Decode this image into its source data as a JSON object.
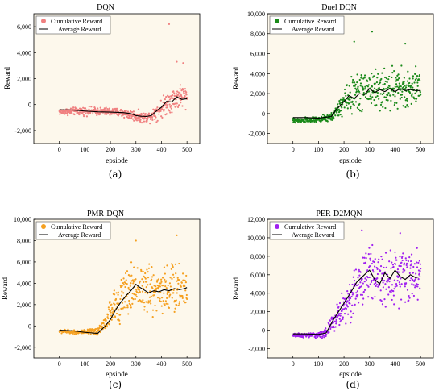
{
  "figure": {
    "panels": [
      {
        "caption": "(a)",
        "colors": {
          "scatter": "#f08080",
          "line": "#000000",
          "background": "#fdf8ec"
        }
      },
      {
        "caption": "(b)",
        "colors": {
          "scatter": "#1a8a1a",
          "line": "#000000",
          "background": "#fdf8ec"
        }
      },
      {
        "caption": "(c)",
        "colors": {
          "scatter": "#f5a020",
          "line": "#000000",
          "background": "#fdf8ec"
        }
      },
      {
        "caption": "(d)",
        "colors": {
          "scatter": "#a020f0",
          "line": "#000000",
          "background": "#fdf8ec"
        }
      }
    ]
  },
  "chart_data": [
    {
      "type": "scatter",
      "title": "DQN",
      "xlabel": "epsiode",
      "ylabel": "Reward",
      "xlim": [
        -100,
        550
      ],
      "ylim": [
        -3000,
        7000
      ],
      "xticks": [
        0,
        100,
        200,
        300,
        400,
        500
      ],
      "yticks": [
        -2000,
        0,
        2000,
        4000,
        6000
      ],
      "ytick_labels": [
        "-2,000",
        "0",
        "2,000",
        "4,000",
        "6,000"
      ],
      "legend": {
        "placement": "top-left"
      },
      "grid": false,
      "series": [
        {
          "name": "Cumulative Reward",
          "kind": "scatter",
          "profile": {
            "x": [
              0,
              100,
              200,
              250,
              300,
              330,
              350,
              380,
              400,
              430,
              450,
              480,
              500
            ],
            "center": [
              -550,
              -500,
              -550,
              -650,
              -900,
              -1000,
              -950,
              -550,
              -300,
              300,
              450,
              700,
              500
            ],
            "spread": [
              350,
              450,
              450,
              500,
              600,
              550,
              600,
              900,
              1100,
              1300,
              1300,
              1400,
              1400
            ]
          },
          "points_per_episode": 1,
          "outliers": [
            [
              430,
              6200
            ],
            [
              460,
              3300
            ],
            [
              485,
              3200
            ]
          ]
        },
        {
          "name": "Average Reward",
          "kind": "line",
          "x": [
            0,
            50,
            100,
            150,
            200,
            250,
            280,
            300,
            320,
            340,
            360,
            380,
            400,
            420,
            440,
            460,
            480,
            500
          ],
          "y": [
            -400,
            -420,
            -500,
            -560,
            -580,
            -620,
            -700,
            -850,
            -900,
            -920,
            -850,
            -500,
            -200,
            250,
            200,
            600,
            400,
            450
          ]
        }
      ]
    },
    {
      "type": "scatter",
      "title": "Duel DQN",
      "xlabel": "epsiode",
      "ylabel": "Reward",
      "xlim": [
        -100,
        550
      ],
      "ylim": [
        -3000,
        10000
      ],
      "xticks": [
        0,
        100,
        200,
        300,
        400,
        500
      ],
      "yticks": [
        -2000,
        0,
        2000,
        4000,
        6000,
        8000,
        10000
      ],
      "ytick_labels": [
        "-2,000",
        "0",
        "2,000",
        "4,000",
        "6,000",
        "8,000",
        "10,000"
      ],
      "legend": {
        "placement": "top-left"
      },
      "grid": false,
      "series": [
        {
          "name": "Cumulative Reward",
          "kind": "scatter",
          "profile": {
            "x": [
              0,
              100,
              150,
              180,
              200,
              230,
              260,
              300,
              350,
              400,
              450,
              500
            ],
            "center": [
              -700,
              -600,
              -400,
              400,
              1300,
              1800,
              2200,
              2500,
              2400,
              2500,
              2300,
              2400
            ],
            "spread": [
              400,
              400,
              600,
              1200,
              2000,
              2500,
              2800,
              3000,
              3000,
              3000,
              2900,
              2900
            ]
          },
          "points_per_episode": 1,
          "outliers": [
            [
              310,
              8200
            ],
            [
              240,
              7200
            ],
            [
              440,
              7000
            ]
          ]
        },
        {
          "name": "Average Reward",
          "kind": "line",
          "x": [
            0,
            50,
            100,
            150,
            170,
            200,
            220,
            240,
            260,
            280,
            300,
            320,
            340,
            360,
            380,
            400,
            420,
            440,
            460,
            480,
            500
          ],
          "y": [
            -400,
            -400,
            -450,
            -300,
            400,
            1200,
            1800,
            1500,
            2000,
            1900,
            2500,
            2100,
            2400,
            2200,
            2500,
            2200,
            2500,
            2300,
            2400,
            2300,
            2300
          ]
        }
      ]
    },
    {
      "type": "scatter",
      "title": "PMR-DQN",
      "xlabel": "epsiode",
      "ylabel": "Reward",
      "xlim": [
        -100,
        550
      ],
      "ylim": [
        -3000,
        10000
      ],
      "xticks": [
        0,
        100,
        200,
        300,
        400,
        500
      ],
      "yticks": [
        -2000,
        0,
        2000,
        4000,
        6000,
        8000,
        10000
      ],
      "ytick_labels": [
        "-2,000",
        "0",
        "2,000",
        "4,000",
        "6,000",
        "8,000",
        "10,000"
      ],
      "legend": {
        "placement": "top-left"
      },
      "grid": false,
      "series": [
        {
          "name": "Cumulative Reward",
          "kind": "scatter",
          "profile": {
            "x": [
              0,
              100,
              150,
              180,
              200,
              250,
              300,
              350,
              400,
              450,
              500
            ],
            "center": [
              -500,
              -600,
              -500,
              300,
              1300,
              2800,
              3800,
              3300,
              3500,
              3500,
              3600
            ],
            "spread": [
              250,
              300,
              500,
              1200,
              2000,
              3000,
              3600,
              3600,
              3500,
              3500,
              3500
            ]
          },
          "points_per_episode": 1,
          "outliers": [
            [
              460,
              8500
            ],
            [
              300,
              8000
            ]
          ]
        },
        {
          "name": "Average Reward",
          "kind": "line",
          "x": [
            0,
            50,
            100,
            150,
            180,
            200,
            220,
            240,
            260,
            280,
            300,
            310,
            330,
            350,
            370,
            390,
            410,
            430,
            450,
            470,
            490,
            500
          ],
          "y": [
            -400,
            -450,
            -600,
            -700,
            0,
            600,
            1500,
            2200,
            2800,
            3300,
            3900,
            3700,
            3400,
            3100,
            3300,
            3200,
            3400,
            3300,
            3500,
            3400,
            3500,
            3600
          ]
        }
      ]
    },
    {
      "type": "scatter",
      "title": "PER-D2MQN",
      "xlabel": "epsiode",
      "ylabel": "Reward",
      "xlim": [
        -100,
        550
      ],
      "ylim": [
        -3000,
        12000
      ],
      "xticks": [
        0,
        100,
        200,
        300,
        400,
        500
      ],
      "yticks": [
        -2000,
        0,
        2000,
        4000,
        6000,
        8000,
        10000,
        12000
      ],
      "ytick_labels": [
        "-2,000",
        "0",
        "2,000",
        "4,000",
        "6,000",
        "8,000",
        "10,000",
        "12,000"
      ],
      "legend": {
        "placement": "top-left"
      },
      "grid": false,
      "series": [
        {
          "name": "Cumulative Reward",
          "kind": "scatter",
          "profile": {
            "x": [
              0,
              100,
              130,
              160,
              200,
              250,
              300,
              350,
              400,
              450,
              500
            ],
            "center": [
              -600,
              -500,
              -300,
              1000,
              2500,
              4500,
              6300,
              5500,
              6000,
              5800,
              5800
            ],
            "spread": [
              300,
              400,
              800,
              1800,
              3000,
              3600,
              4000,
              4000,
              4000,
              3800,
              3800
            ]
          },
          "points_per_episode": 1,
          "outliers": [
            [
              270,
              10800
            ],
            [
              420,
              10500
            ]
          ]
        },
        {
          "name": "Average Reward",
          "kind": "line",
          "x": [
            0,
            50,
            100,
            130,
            160,
            190,
            220,
            250,
            280,
            300,
            320,
            340,
            360,
            380,
            400,
            420,
            440,
            460,
            480,
            500
          ],
          "y": [
            -400,
            -400,
            -450,
            -300,
            1200,
            2500,
            3800,
            5200,
            6000,
            6500,
            5500,
            5000,
            6200,
            5600,
            6500,
            5800,
            5500,
            6000,
            5700,
            5800
          ]
        }
      ]
    }
  ]
}
